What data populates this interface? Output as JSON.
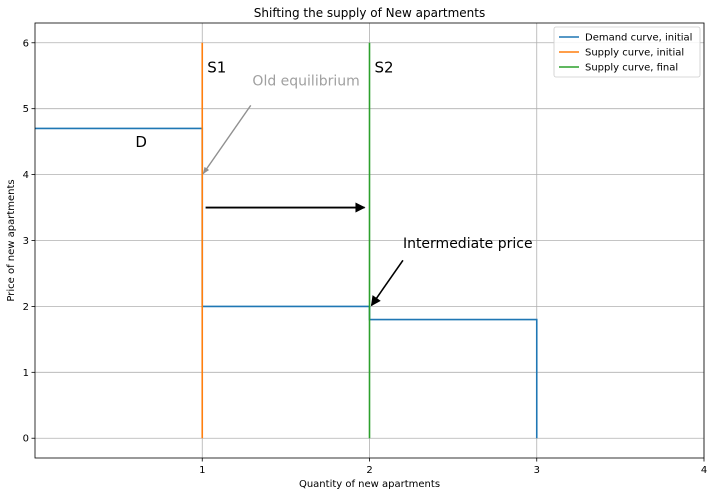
{
  "chart_data": {
    "type": "line",
    "title": "Shifting the supply of New apartments",
    "xlabel": "Quantity of new apartments",
    "ylabel": "Price of new apartments",
    "xlim": [
      0,
      4
    ],
    "ylim": [
      -0.3,
      6.3
    ],
    "xticks": [
      "1",
      "2",
      "3",
      "4"
    ],
    "yticks": [
      "0",
      "1",
      "2",
      "3",
      "4",
      "5",
      "6"
    ],
    "xtick_values": [
      1,
      2,
      3,
      4
    ],
    "ytick_values": [
      0,
      1,
      2,
      3,
      4,
      5,
      6
    ],
    "grid": true,
    "legend_position": "top-right",
    "series": [
      {
        "name": "Demand curve, initial",
        "color": "#1f77b4",
        "x": [
          0,
          1,
          1,
          2,
          2,
          3,
          3
        ],
        "y": [
          4.7,
          4.7,
          2.0,
          2.0,
          1.8,
          1.8,
          0
        ]
      },
      {
        "name": "Supply curve, initial",
        "color": "#ff7f0e",
        "x": [
          1,
          1
        ],
        "y": [
          0,
          6
        ]
      },
      {
        "name": "Supply curve, final",
        "color": "#2ca02c",
        "x": [
          2,
          2
        ],
        "y": [
          0,
          6
        ]
      }
    ],
    "annotations": [
      {
        "text": "S1",
        "x": 1.03,
        "y": 5.55
      },
      {
        "text": "S2",
        "x": 2.03,
        "y": 5.55
      },
      {
        "text": "D",
        "x": 0.6,
        "y": 4.42
      },
      {
        "text": "Old equilibrium",
        "x": 1.3,
        "y": 5.17,
        "arrow_to": [
          1.0,
          4.0
        ]
      },
      {
        "text": "Intermediate price",
        "x": 2.2,
        "y": 2.75,
        "arrow_to": [
          2.0,
          2.0
        ]
      },
      {
        "text": "",
        "x": 1.02,
        "y": 3.5,
        "arrow_to": [
          1.97,
          3.5
        ]
      }
    ]
  }
}
